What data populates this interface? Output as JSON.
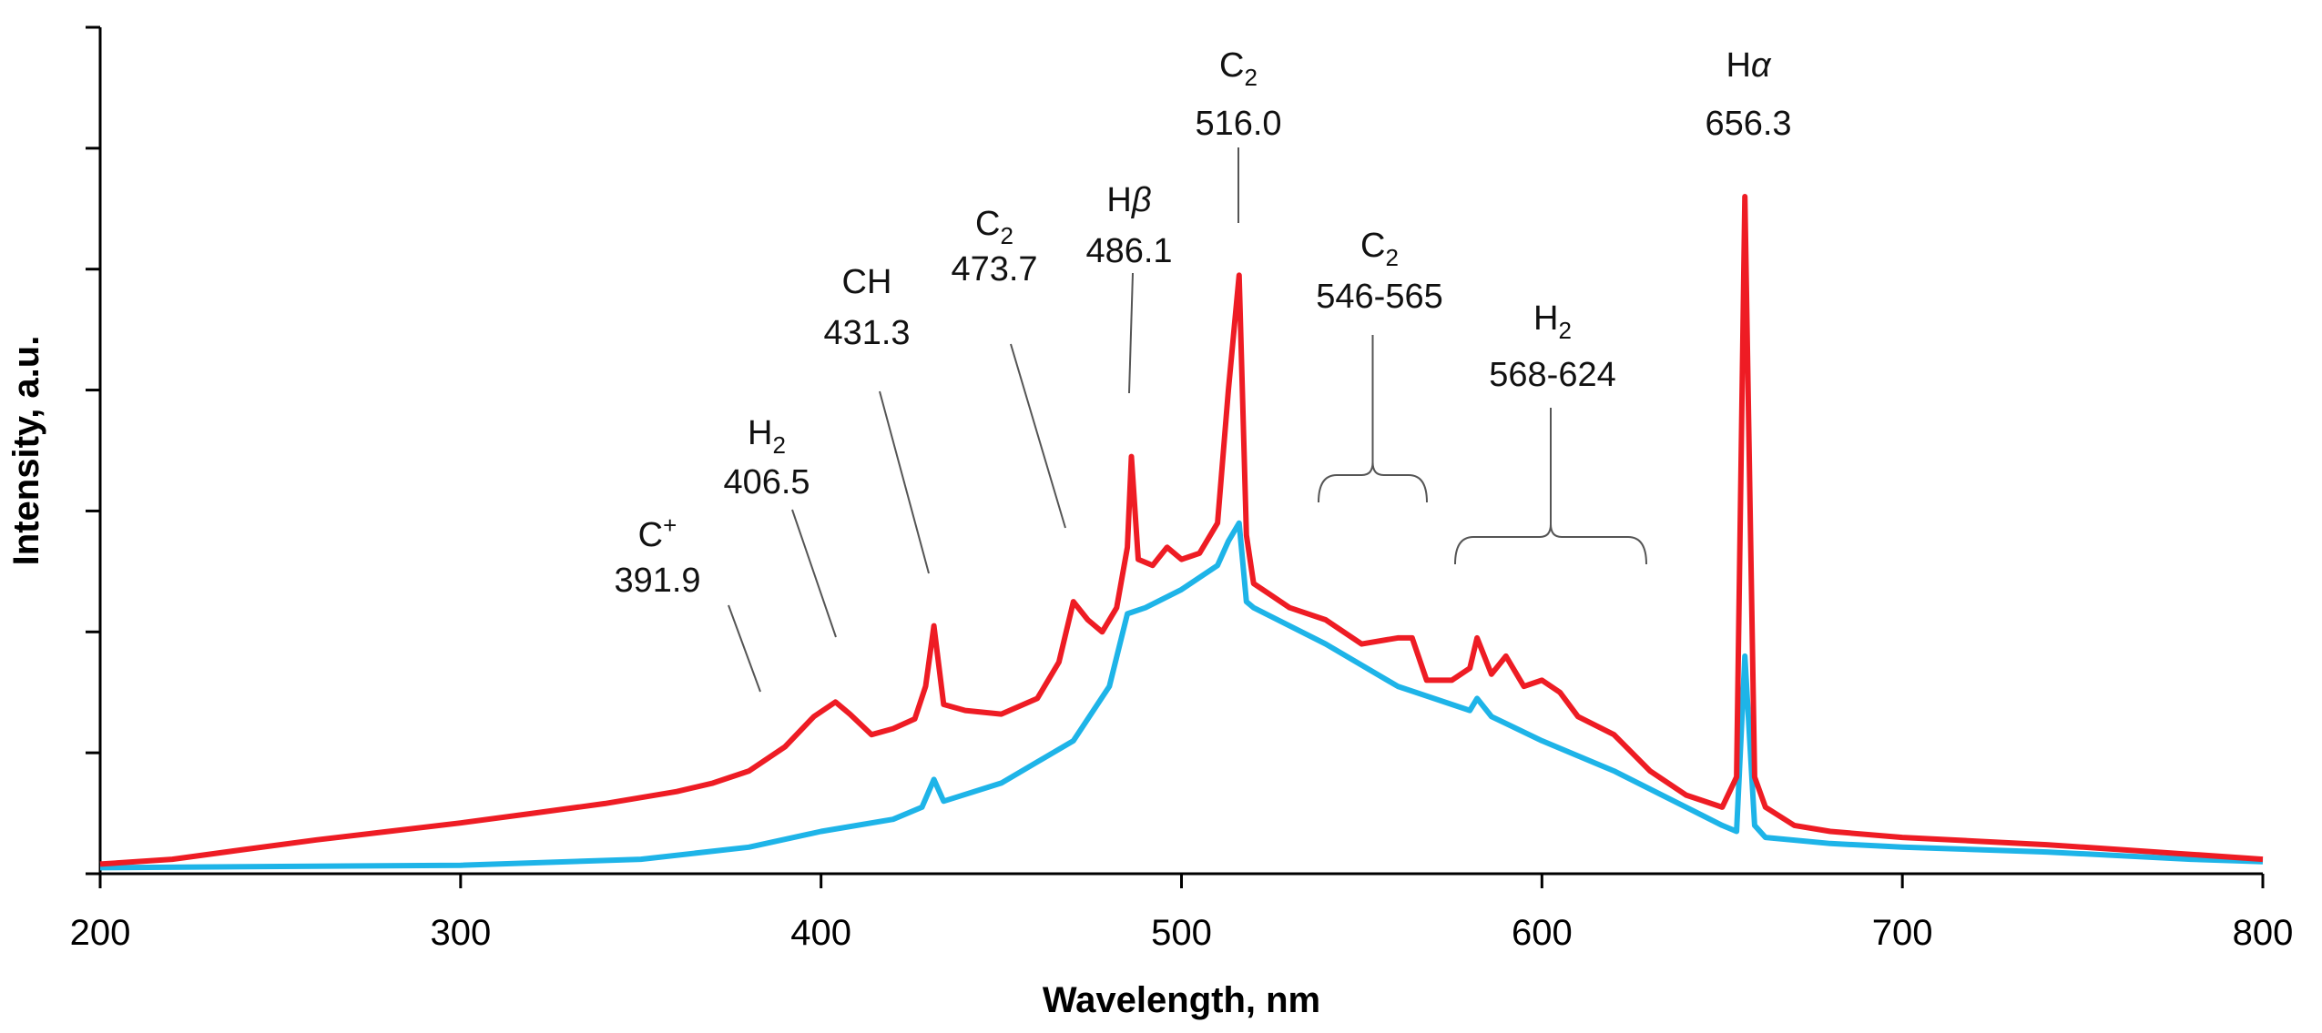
{
  "chart_data": {
    "type": "line",
    "title": "",
    "xlabel": "Wavelength, nm",
    "ylabel": "Intensity, a.u.",
    "xlim": [
      200,
      800
    ],
    "ylim": [
      0,
      7
    ],
    "x_ticks": [
      200,
      300,
      400,
      500,
      600,
      700,
      800
    ],
    "grid": false,
    "legend": "none",
    "series": [
      {
        "name": "red",
        "color": "#ee1c24",
        "x": [
          200,
          220,
          240,
          260,
          280,
          300,
          320,
          340,
          360,
          370,
          380,
          390,
          398,
          404,
          408,
          414,
          420,
          426,
          429,
          431.3,
          434,
          440,
          450,
          460,
          466,
          470,
          474,
          478,
          482,
          485,
          486.1,
          488,
          492,
          496,
          500,
          505,
          510,
          513,
          516,
          518,
          520,
          525,
          530,
          540,
          550,
          560,
          564,
          568,
          575,
          580,
          582,
          586,
          590,
          595,
          600,
          605,
          610,
          620,
          630,
          640,
          650,
          654,
          656.3,
          659,
          662,
          670,
          680,
          700,
          720,
          740,
          760,
          780,
          800
        ],
        "values": [
          0.08,
          0.12,
          0.2,
          0.28,
          0.35,
          0.42,
          0.5,
          0.58,
          0.68,
          0.75,
          0.85,
          1.05,
          1.3,
          1.42,
          1.32,
          1.15,
          1.2,
          1.28,
          1.55,
          2.05,
          1.4,
          1.35,
          1.32,
          1.45,
          1.75,
          2.25,
          2.1,
          2.0,
          2.2,
          2.7,
          3.45,
          2.6,
          2.55,
          2.7,
          2.6,
          2.65,
          2.9,
          4.0,
          4.95,
          2.8,
          2.4,
          2.3,
          2.2,
          2.1,
          1.9,
          1.95,
          1.95,
          1.6,
          1.6,
          1.7,
          1.95,
          1.65,
          1.8,
          1.55,
          1.6,
          1.5,
          1.3,
          1.15,
          0.85,
          0.65,
          0.55,
          0.8,
          5.6,
          0.8,
          0.55,
          0.4,
          0.35,
          0.3,
          0.27,
          0.24,
          0.2,
          0.16,
          0.12
        ]
      },
      {
        "name": "blue",
        "color": "#1eb4e8",
        "x": [
          200,
          250,
          300,
          350,
          380,
          400,
          420,
          428,
          431.3,
          434,
          450,
          470,
          480,
          485,
          490,
          500,
          510,
          513,
          516,
          518,
          520,
          540,
          560,
          580,
          582,
          586,
          600,
          620,
          640,
          650,
          654,
          656.3,
          659,
          662,
          680,
          700,
          740,
          780,
          800
        ],
        "values": [
          0.05,
          0.06,
          0.07,
          0.12,
          0.22,
          0.35,
          0.45,
          0.55,
          0.78,
          0.6,
          0.75,
          1.1,
          1.55,
          2.15,
          2.2,
          2.35,
          2.55,
          2.75,
          2.9,
          2.25,
          2.2,
          1.9,
          1.55,
          1.35,
          1.45,
          1.3,
          1.1,
          0.85,
          0.55,
          0.4,
          0.35,
          1.8,
          0.4,
          0.3,
          0.25,
          0.22,
          0.18,
          0.12,
          0.1
        ]
      }
    ],
    "annotations": [
      {
        "label": "C",
        "sup": "+",
        "sub": "",
        "value": "391.9",
        "target_x": 384,
        "target_y": 1.35
      },
      {
        "label": "H",
        "sup": "",
        "sub": "2",
        "value": "406.5",
        "target_x": 405,
        "target_y": 1.7
      },
      {
        "label": "CH",
        "sup": "",
        "sub": "",
        "value": "431.3",
        "target_x": 431.3,
        "target_y": 2.2
      },
      {
        "label": "C",
        "sup": "",
        "sub": "2",
        "value": "473.7",
        "target_x": 469,
        "target_y": 2.5
      },
      {
        "label": "H",
        "sup": "",
        "sub": "",
        "greek": "β",
        "value": "486.1",
        "target_x": 486.1,
        "target_y": 3.7
      },
      {
        "label": "C",
        "sup": "",
        "sub": "2",
        "value": "516.0",
        "target_x": 516,
        "target_y": 5.2
      },
      {
        "label": "C",
        "sup": "",
        "sub": "2",
        "value": "546-565",
        "range": [
          539,
          568
        ],
        "target_y": 3.1
      },
      {
        "label": "H",
        "sup": "",
        "sub": "2",
        "value": "568-624",
        "range": [
          576,
          628
        ],
        "target_y": 2.55
      },
      {
        "label": "H",
        "sup": "",
        "sub": "",
        "greek": "α",
        "value": "656.3",
        "target_x": 656.3,
        "target_y": 5.8
      }
    ]
  }
}
